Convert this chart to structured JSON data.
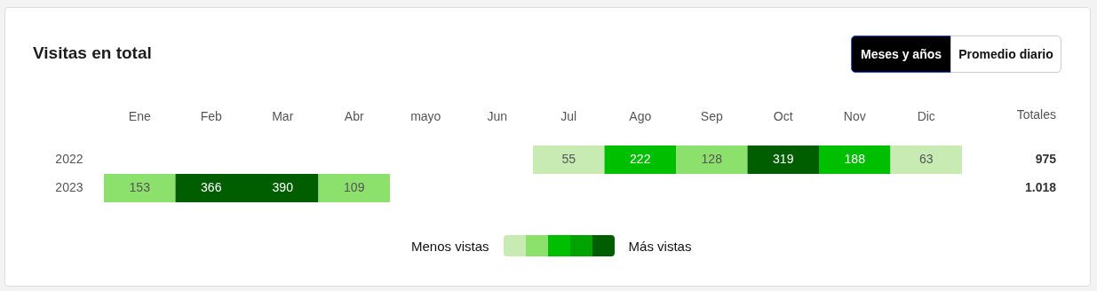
{
  "chart_data": {
    "type": "heatmap",
    "title": "Visitas en total",
    "categories": [
      "Ene",
      "Feb",
      "Mar",
      "Abr",
      "mayo",
      "Jun",
      "Jul",
      "Ago",
      "Sep",
      "Oct",
      "Nov",
      "Dic"
    ],
    "y_categories": [
      "2022",
      "2023"
    ],
    "y2label": "Totales",
    "y2_categories": [
      "975",
      "1.018"
    ],
    "cells": [
      [
        null,
        null,
        null,
        null,
        null,
        null,
        55,
        222,
        128,
        319,
        188,
        63
      ],
      [
        153,
        366,
        390,
        109,
        null,
        null,
        null,
        null,
        null,
        null,
        null,
        null
      ]
    ],
    "data_labels": true,
    "colors": [
      "#c8ebb4",
      "#8ce06c",
      "#00bf00",
      "#00a300",
      "#005e00"
    ],
    "annotations": [
      "Menos vistas",
      "Más vistas",
      "Meses y años",
      "Promedio diario"
    ]
  }
}
